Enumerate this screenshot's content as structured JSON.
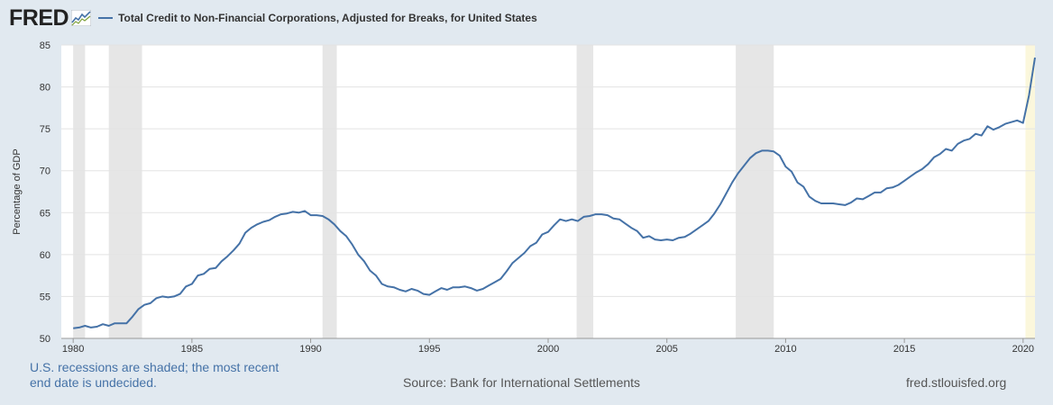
{
  "header": {
    "logo_text": "FRED",
    "title": "Total Credit to Non-Financial Corporations, Adjusted for Breaks, for United States",
    "series_color": "#4572a7"
  },
  "footer": {
    "recession_note_line1": "U.S. recessions are shaded; the most recent",
    "recession_note_line2": "end date is undecided.",
    "source": "Source: Bank for International Settlements",
    "site": "fred.stlouisfed.org"
  },
  "chart_data": {
    "type": "line",
    "title": "Total Credit to Non-Financial Corporations, Adjusted for Breaks, for United States",
    "xlabel": "",
    "ylabel": "Percentage of GDP",
    "ylim": [
      50,
      85
    ],
    "xlim": [
      1979.5,
      2020.5
    ],
    "x_ticks": [
      "1980",
      "1985",
      "1990",
      "1995",
      "2000",
      "2005",
      "2010",
      "2015",
      "2020"
    ],
    "y_ticks": [
      "50",
      "55",
      "60",
      "65",
      "70",
      "75",
      "80",
      "85"
    ],
    "grid": true,
    "recession_color": "#e6e6e6",
    "recessions": [
      [
        1980.0,
        1980.5
      ],
      [
        1981.5,
        1982.9
      ],
      [
        1990.5,
        1991.1
      ],
      [
        2001.2,
        2001.9
      ],
      [
        2007.9,
        2009.5
      ]
    ],
    "undecided_recession": [
      2020.1,
      2020.5
    ],
    "series": [
      {
        "name": "Total Credit to Non-Financial Corporations, Adjusted for Breaks, for United States",
        "color": "#4572a7",
        "points": [
          [
            1980.0,
            51.2
          ],
          [
            1980.25,
            51.3
          ],
          [
            1980.5,
            51.5
          ],
          [
            1980.75,
            51.3
          ],
          [
            1981.0,
            51.4
          ],
          [
            1981.25,
            51.7
          ],
          [
            1981.5,
            51.5
          ],
          [
            1981.75,
            51.8
          ],
          [
            1982.0,
            51.8
          ],
          [
            1982.25,
            51.8
          ],
          [
            1982.5,
            52.6
          ],
          [
            1982.75,
            53.5
          ],
          [
            1983.0,
            54.0
          ],
          [
            1983.25,
            54.2
          ],
          [
            1983.5,
            54.8
          ],
          [
            1983.75,
            55.0
          ],
          [
            1984.0,
            54.9
          ],
          [
            1984.25,
            55.0
          ],
          [
            1984.5,
            55.3
          ],
          [
            1984.75,
            56.2
          ],
          [
            1985.0,
            56.5
          ],
          [
            1985.25,
            57.5
          ],
          [
            1985.5,
            57.7
          ],
          [
            1985.75,
            58.3
          ],
          [
            1986.0,
            58.4
          ],
          [
            1986.25,
            59.2
          ],
          [
            1986.5,
            59.8
          ],
          [
            1986.75,
            60.5
          ],
          [
            1987.0,
            61.3
          ],
          [
            1987.25,
            62.6
          ],
          [
            1987.5,
            63.2
          ],
          [
            1987.75,
            63.6
          ],
          [
            1988.0,
            63.9
          ],
          [
            1988.25,
            64.1
          ],
          [
            1988.5,
            64.5
          ],
          [
            1988.75,
            64.8
          ],
          [
            1989.0,
            64.9
          ],
          [
            1989.25,
            65.1
          ],
          [
            1989.5,
            65.0
          ],
          [
            1989.75,
            65.2
          ],
          [
            1990.0,
            64.7
          ],
          [
            1990.25,
            64.7
          ],
          [
            1990.5,
            64.6
          ],
          [
            1990.75,
            64.2
          ],
          [
            1991.0,
            63.6
          ],
          [
            1991.25,
            62.8
          ],
          [
            1991.5,
            62.2
          ],
          [
            1991.75,
            61.2
          ],
          [
            1992.0,
            60.0
          ],
          [
            1992.25,
            59.2
          ],
          [
            1992.5,
            58.1
          ],
          [
            1992.75,
            57.5
          ],
          [
            1993.0,
            56.5
          ],
          [
            1993.25,
            56.2
          ],
          [
            1993.5,
            56.1
          ],
          [
            1993.75,
            55.8
          ],
          [
            1994.0,
            55.6
          ],
          [
            1994.25,
            55.9
          ],
          [
            1994.5,
            55.7
          ],
          [
            1994.75,
            55.3
          ],
          [
            1995.0,
            55.2
          ],
          [
            1995.25,
            55.6
          ],
          [
            1995.5,
            56.0
          ],
          [
            1995.75,
            55.8
          ],
          [
            1996.0,
            56.1
          ],
          [
            1996.25,
            56.1
          ],
          [
            1996.5,
            56.2
          ],
          [
            1996.75,
            56.0
          ],
          [
            1997.0,
            55.7
          ],
          [
            1997.25,
            55.9
          ],
          [
            1997.5,
            56.3
          ],
          [
            1997.75,
            56.7
          ],
          [
            1998.0,
            57.1
          ],
          [
            1998.25,
            58.0
          ],
          [
            1998.5,
            59.0
          ],
          [
            1998.75,
            59.6
          ],
          [
            1999.0,
            60.2
          ],
          [
            1999.25,
            61.0
          ],
          [
            1999.5,
            61.4
          ],
          [
            1999.75,
            62.4
          ],
          [
            2000.0,
            62.7
          ],
          [
            2000.25,
            63.5
          ],
          [
            2000.5,
            64.2
          ],
          [
            2000.75,
            64.0
          ],
          [
            2001.0,
            64.2
          ],
          [
            2001.25,
            64.0
          ],
          [
            2001.5,
            64.5
          ],
          [
            2001.75,
            64.6
          ],
          [
            2002.0,
            64.8
          ],
          [
            2002.25,
            64.8
          ],
          [
            2002.5,
            64.7
          ],
          [
            2002.75,
            64.3
          ],
          [
            2003.0,
            64.2
          ],
          [
            2003.25,
            63.7
          ],
          [
            2003.5,
            63.2
          ],
          [
            2003.75,
            62.8
          ],
          [
            2004.0,
            62.0
          ],
          [
            2004.25,
            62.2
          ],
          [
            2004.5,
            61.8
          ],
          [
            2004.75,
            61.7
          ],
          [
            2005.0,
            61.8
          ],
          [
            2005.25,
            61.7
          ],
          [
            2005.5,
            62.0
          ],
          [
            2005.75,
            62.1
          ],
          [
            2006.0,
            62.5
          ],
          [
            2006.25,
            63.0
          ],
          [
            2006.5,
            63.5
          ],
          [
            2006.75,
            64.0
          ],
          [
            2007.0,
            64.9
          ],
          [
            2007.25,
            66.0
          ],
          [
            2007.5,
            67.3
          ],
          [
            2007.75,
            68.6
          ],
          [
            2008.0,
            69.7
          ],
          [
            2008.25,
            70.6
          ],
          [
            2008.5,
            71.5
          ],
          [
            2008.75,
            72.1
          ],
          [
            2009.0,
            72.4
          ],
          [
            2009.25,
            72.4
          ],
          [
            2009.5,
            72.3
          ],
          [
            2009.75,
            71.8
          ],
          [
            2010.0,
            70.5
          ],
          [
            2010.25,
            69.9
          ],
          [
            2010.5,
            68.6
          ],
          [
            2010.75,
            68.1
          ],
          [
            2011.0,
            66.9
          ],
          [
            2011.25,
            66.4
          ],
          [
            2011.5,
            66.1
          ],
          [
            2011.75,
            66.1
          ],
          [
            2012.0,
            66.1
          ],
          [
            2012.25,
            66.0
          ],
          [
            2012.5,
            65.9
          ],
          [
            2012.75,
            66.2
          ],
          [
            2013.0,
            66.7
          ],
          [
            2013.25,
            66.6
          ],
          [
            2013.5,
            67.0
          ],
          [
            2013.75,
            67.4
          ],
          [
            2014.0,
            67.4
          ],
          [
            2014.25,
            67.9
          ],
          [
            2014.5,
            68.0
          ],
          [
            2014.75,
            68.3
          ],
          [
            2015.0,
            68.8
          ],
          [
            2015.25,
            69.3
          ],
          [
            2015.5,
            69.8
          ],
          [
            2015.75,
            70.2
          ],
          [
            2016.0,
            70.8
          ],
          [
            2016.25,
            71.6
          ],
          [
            2016.5,
            72.0
          ],
          [
            2016.75,
            72.6
          ],
          [
            2017.0,
            72.4
          ],
          [
            2017.25,
            73.2
          ],
          [
            2017.5,
            73.6
          ],
          [
            2017.75,
            73.8
          ],
          [
            2018.0,
            74.4
          ],
          [
            2018.25,
            74.2
          ],
          [
            2018.5,
            75.3
          ],
          [
            2018.75,
            74.9
          ],
          [
            2019.0,
            75.2
          ],
          [
            2019.25,
            75.6
          ],
          [
            2019.5,
            75.8
          ],
          [
            2019.75,
            76.0
          ],
          [
            2020.0,
            75.7
          ],
          [
            2020.25,
            79.0
          ],
          [
            2020.5,
            83.5
          ]
        ]
      }
    ]
  }
}
